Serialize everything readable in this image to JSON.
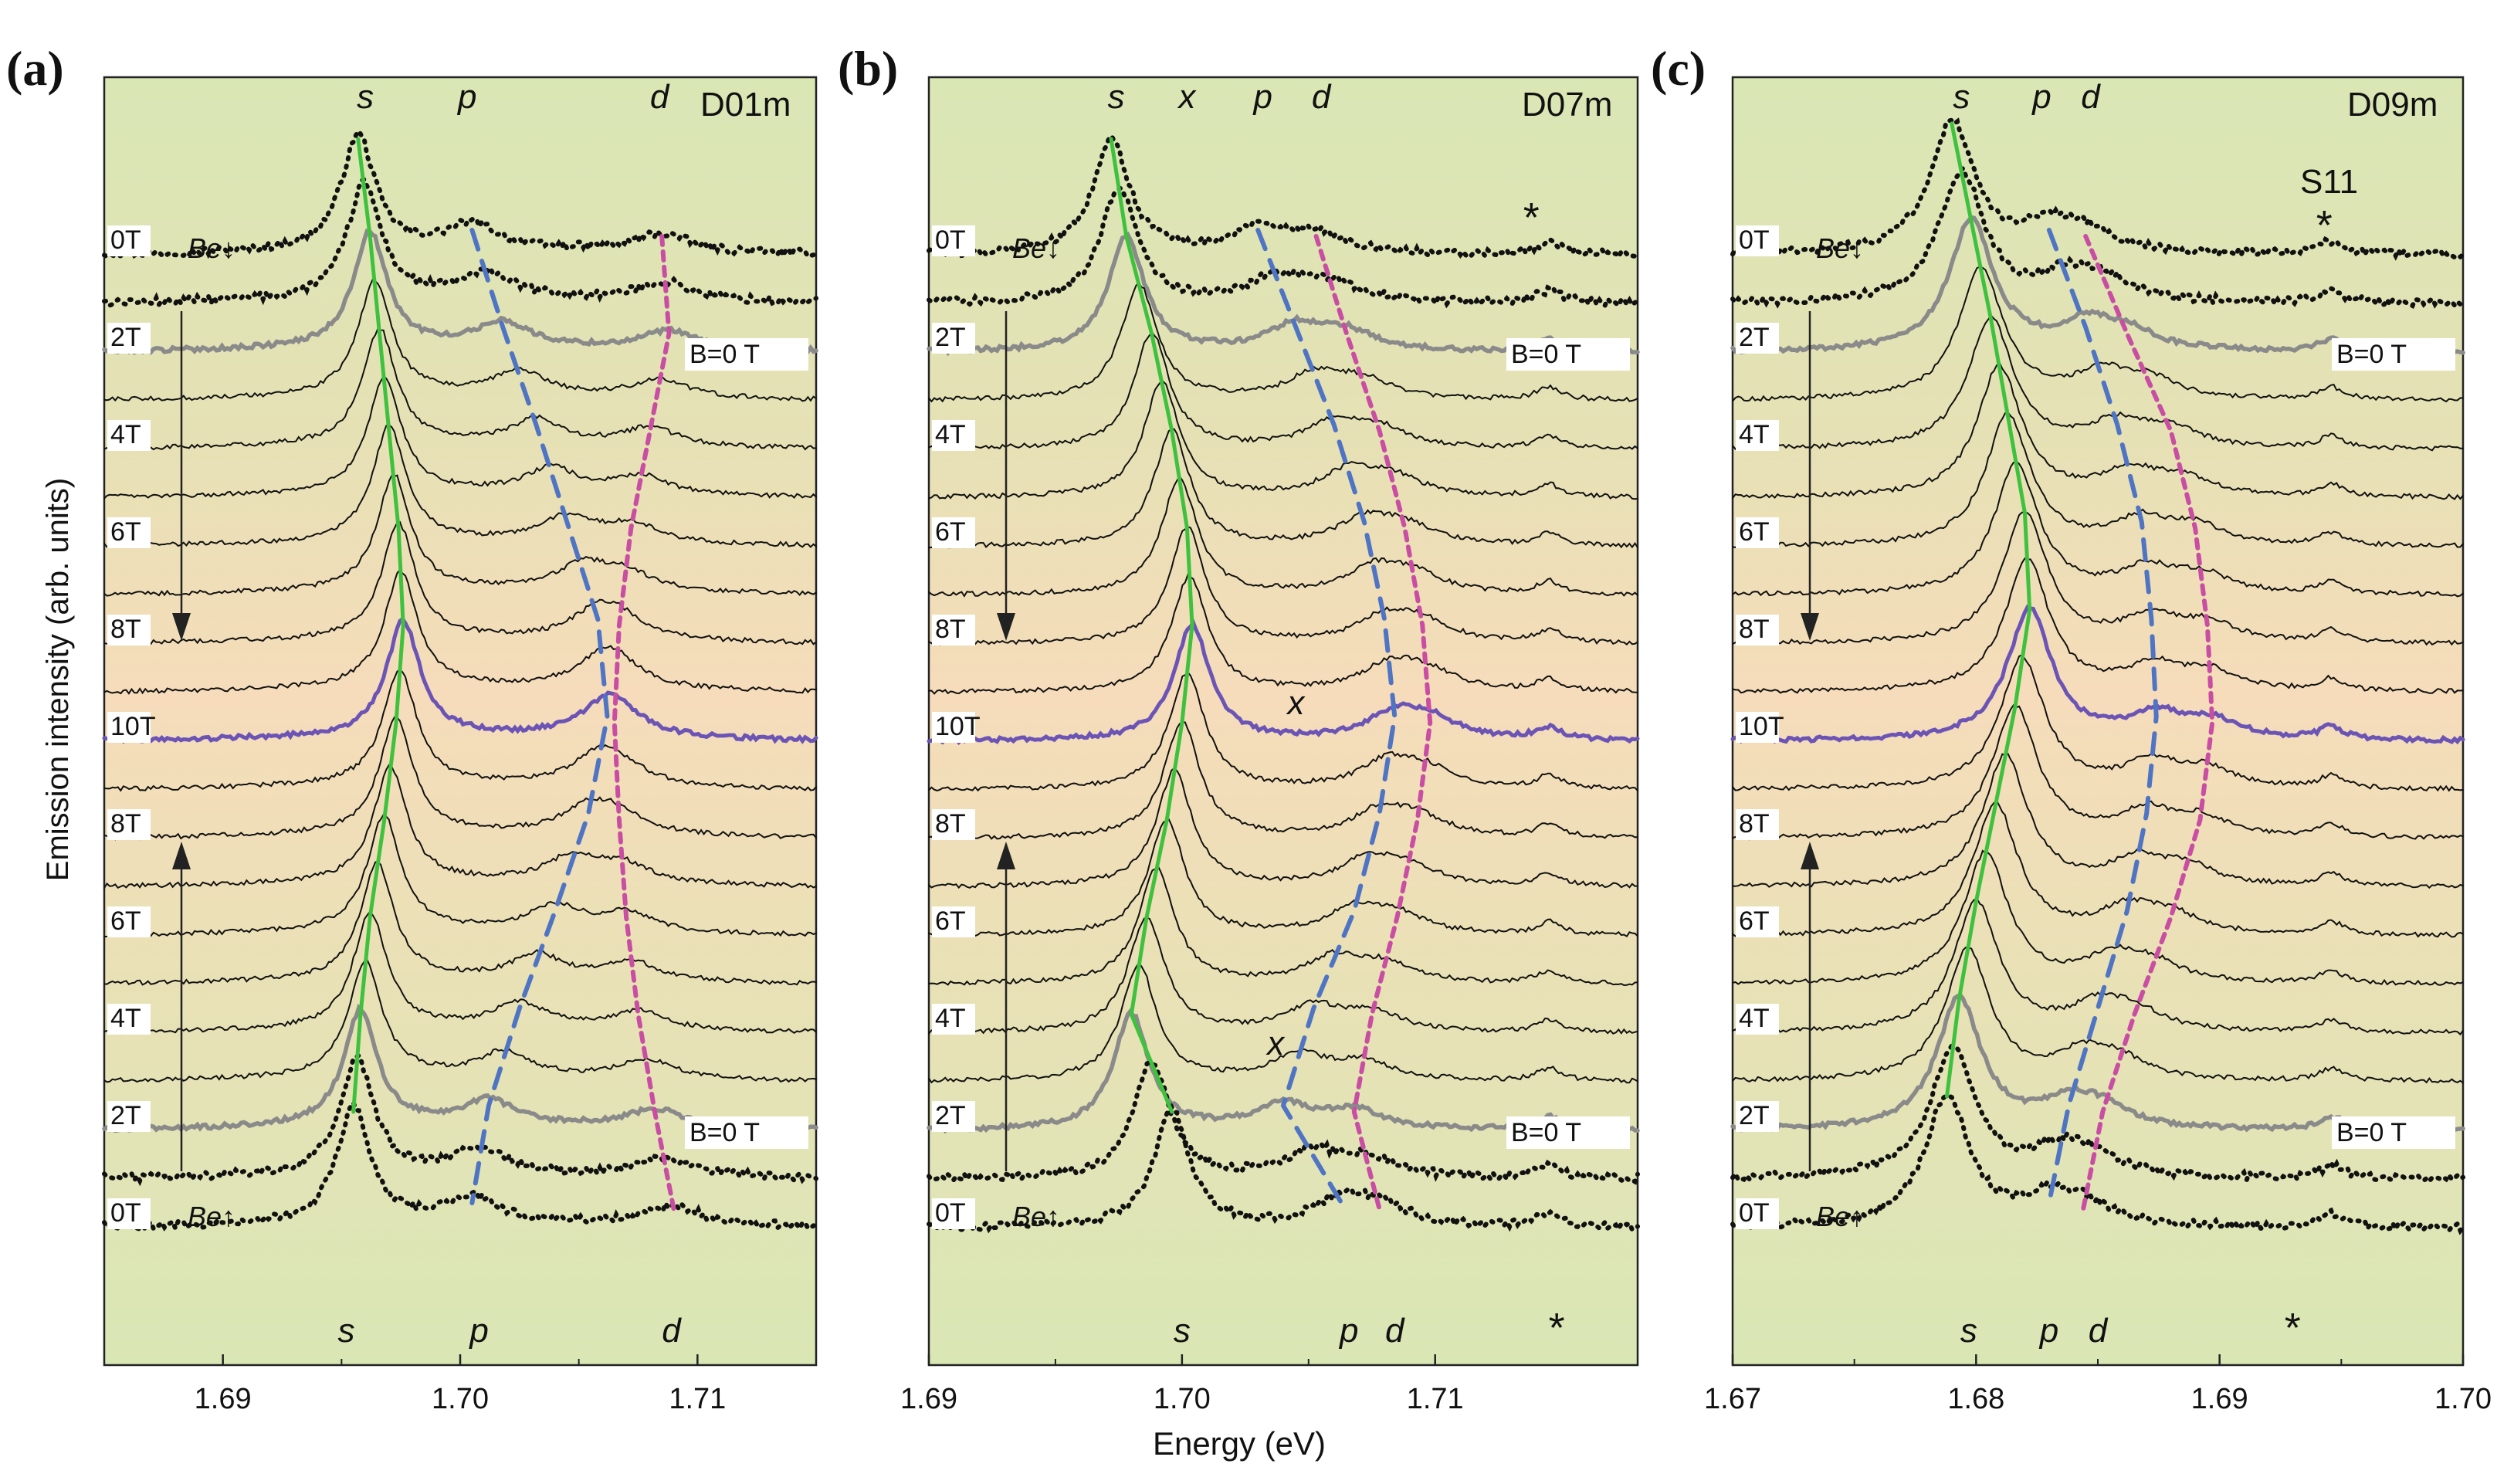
{
  "chart_data": {
    "type": "line",
    "ylabel": "Emission intensity (arb. units)",
    "xlabel": "Energy (eV)",
    "colors": {
      "green_bg": "#d8e6b4",
      "orange_mid": "#f6ddbb",
      "s_line": "#3ec23e",
      "p_line": "#4f74c4",
      "d_line": "#c94ea3",
      "gray_curve": "#8a8a8a",
      "purple_curve": "#6b54b5",
      "black": "#111111"
    },
    "panels": [
      {
        "id": "a",
        "label": "(a)",
        "sample": "D01m",
        "xlim": [
          1.685,
          1.715
        ],
        "xticks": [
          1.69,
          1.7,
          1.71
        ],
        "xtick_labels": [
          "1.69",
          "1.70",
          "1.71"
        ],
        "field_labels": [
          "0T",
          "2T",
          "4T",
          "6T",
          "8T",
          "10T",
          "8T",
          "6T",
          "4T",
          "2T",
          "0T"
        ],
        "field_label_steps": [
          0,
          2,
          4,
          6,
          8,
          10,
          12,
          14,
          16,
          18,
          20
        ],
        "sweep_down_label": "Be↓",
        "sweep_up_label": "Be↑",
        "zero_field_label": "B=0 T",
        "zero_field_curve_steps": [
          2,
          18
        ],
        "mid_field_curve_step": 10,
        "s_energy": [
          1.6957,
          1.6962,
          1.6966,
          1.697,
          1.6974,
          1.6976,
          1.6973,
          1.6968,
          1.6962,
          1.6958,
          1.6955
        ],
        "p_energy": [
          1.7005,
          1.7018,
          1.7032,
          1.7045,
          1.7058,
          1.7062,
          1.7054,
          1.704,
          1.7025,
          1.7012,
          1.7005
        ],
        "d_energy": [
          1.7085,
          1.7088,
          1.708,
          1.7072,
          1.7067,
          1.7065,
          1.7067,
          1.707,
          1.7075,
          1.7082,
          1.709
        ],
        "peak_labels_top": [
          {
            "text": "s",
            "energy": 1.696
          },
          {
            "text": "p",
            "energy": 1.7003
          },
          {
            "text": "d",
            "energy": 1.7084
          }
        ],
        "peak_labels_bottom": [
          {
            "text": "s",
            "energy": 1.6952
          },
          {
            "text": "p",
            "energy": 1.7008
          },
          {
            "text": "d",
            "energy": 1.7089
          }
        ],
        "extra_labels": []
      },
      {
        "id": "b",
        "label": "(b)",
        "sample": "D07m",
        "xlim": [
          1.69,
          1.718
        ],
        "xticks": [
          1.69,
          1.7,
          1.71
        ],
        "xtick_labels": [
          "1.69",
          "1.70",
          "1.71"
        ],
        "field_labels": [
          "0T",
          "2T",
          "4T",
          "6T",
          "8T",
          "10T",
          "8T",
          "6T",
          "4T",
          "2T",
          "0T"
        ],
        "field_label_steps": [
          0,
          2,
          4,
          6,
          8,
          10,
          12,
          14,
          16,
          18,
          20
        ],
        "sweep_down_label": "Be↓",
        "sweep_up_label": "Be↑",
        "zero_field_label": "B=0 T",
        "zero_field_curve_steps": [
          2,
          18
        ],
        "mid_field_curve_step": 10,
        "s_energy": [
          1.6972,
          1.6978,
          1.6988,
          1.6996,
          1.7002,
          1.7004,
          1.7,
          1.6994,
          1.6986,
          1.698,
          1.6996
        ],
        "p_energy": [
          1.703,
          1.7045,
          1.706,
          1.7072,
          1.708,
          1.7084,
          1.7078,
          1.7068,
          1.7052,
          1.704,
          1.7063
        ],
        "d_energy": [
          1.7053,
          1.7065,
          1.7078,
          1.7088,
          1.7095,
          1.7098,
          1.7093,
          1.7085,
          1.7075,
          1.7068,
          1.7078
        ],
        "peak_labels_top": [
          {
            "text": "s",
            "energy": 1.6974
          },
          {
            "text": "x",
            "energy": 1.7002
          },
          {
            "text": "p",
            "energy": 1.7032
          },
          {
            "text": "d",
            "energy": 1.7055
          },
          {
            "text": "*",
            "energy": 1.7138
          }
        ],
        "peak_labels_bottom": [
          {
            "text": "s",
            "energy": 1.7
          },
          {
            "text": "p",
            "energy": 1.7066
          },
          {
            "text": "d",
            "energy": 1.7084
          },
          {
            "text": "*",
            "energy": 1.7148
          }
        ],
        "extra_labels": [
          {
            "text": "x",
            "energy": 1.7045,
            "step": 10.0
          },
          {
            "text": "x",
            "energy": 1.7037,
            "step": 17.0
          }
        ]
      },
      {
        "id": "c",
        "label": "(c)",
        "sample": "D09m",
        "xlim": [
          1.67,
          1.7
        ],
        "xticks": [
          1.67,
          1.68,
          1.69,
          1.7
        ],
        "xtick_labels": [
          "1.67",
          "1.68",
          "1.69",
          "1.70"
        ],
        "field_labels": [
          "0T",
          "2T",
          "4T",
          "6T",
          "8T",
          "10T",
          "8T",
          "6T",
          "4T",
          "2T",
          "0T"
        ],
        "field_label_steps": [
          0,
          2,
          4,
          6,
          8,
          10,
          12,
          14,
          16,
          18,
          20
        ],
        "sweep_down_label": "Be↓",
        "sweep_up_label": "Be↑",
        "zero_field_label": "B=0 T",
        "zero_field_curve_steps": [
          2,
          18
        ],
        "mid_field_curve_step": 10,
        "s_energy": [
          1.679,
          1.6798,
          1.6806,
          1.6813,
          1.682,
          1.6822,
          1.6816,
          1.6808,
          1.68,
          1.6793,
          1.6788
        ],
        "p_energy": [
          1.683,
          1.6845,
          1.6858,
          1.6868,
          1.6872,
          1.6874,
          1.687,
          1.6862,
          1.685,
          1.6838,
          1.683
        ],
        "d_energy": [
          1.6845,
          1.6862,
          1.688,
          1.689,
          1.6895,
          1.6897,
          1.6892,
          1.688,
          1.6865,
          1.6852,
          1.6844
        ],
        "peak_labels_top": [
          {
            "text": "s",
            "energy": 1.6794
          },
          {
            "text": "p",
            "energy": 1.6827
          },
          {
            "text": "d",
            "energy": 1.6847
          },
          {
            "text": "S11",
            "energy": 1.6945
          },
          {
            "text": "*",
            "energy": 1.6943
          }
        ],
        "peak_labels_bottom": [
          {
            "text": "s",
            "energy": 1.6797
          },
          {
            "text": "p",
            "energy": 1.683
          },
          {
            "text": "d",
            "energy": 1.685
          },
          {
            "text": "*",
            "energy": 1.693
          }
        ],
        "extra_labels": []
      }
    ]
  }
}
